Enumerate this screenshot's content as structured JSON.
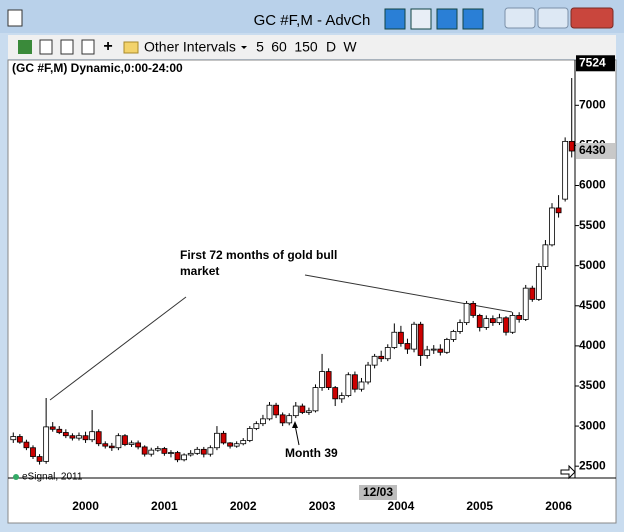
{
  "window": {
    "title": "GC #F,M - AdvCh",
    "toolbar": {
      "intervals_menu": "Other Intervals",
      "intervals": [
        "5",
        "60",
        "150",
        "D",
        "W"
      ]
    }
  },
  "chart_data": {
    "type": "candlestick",
    "title": "(GC #F,M) Dynamic,0:00-24:00",
    "categories": [
      null,
      null,
      null,
      null,
      null,
      null,
      null,
      null,
      null,
      null,
      null,
      "2000",
      null,
      null,
      null,
      null,
      null,
      null,
      null,
      null,
      null,
      null,
      null,
      "2001",
      null,
      null,
      null,
      null,
      null,
      null,
      null,
      null,
      null,
      null,
      null,
      "2002",
      null,
      null,
      null,
      null,
      null,
      null,
      null,
      null,
      null,
      null,
      null,
      "2003",
      null,
      null,
      null,
      null,
      null,
      null,
      null,
      null,
      null,
      null,
      null,
      "2004",
      null,
      null,
      null,
      null,
      null,
      null,
      null,
      null,
      null,
      null,
      null,
      "2005",
      null,
      null,
      null,
      null,
      null,
      null,
      null,
      null,
      null,
      null,
      null,
      "2006",
      null,
      null
    ],
    "open": [
      2830,
      2870,
      2800,
      2730,
      2620,
      2560,
      2990,
      2960,
      2920,
      2880,
      2850,
      2880,
      2830,
      2930,
      2780,
      2750,
      2730,
      2880,
      2770,
      2790,
      2740,
      2650,
      2700,
      2720,
      2660,
      2670,
      2580,
      2640,
      2660,
      2710,
      2650,
      2730,
      2910,
      2790,
      2750,
      2780,
      2820,
      2970,
      3030,
      3090,
      3260,
      3140,
      3040,
      3130,
      3250,
      3170,
      3190,
      3480,
      3680,
      3480,
      3340,
      3380,
      3640,
      3460,
      3550,
      3760,
      3870,
      3840,
      3980,
      4170,
      4030,
      3960,
      4270,
      3880,
      3950,
      3960,
      3920,
      4080,
      4180,
      4290,
      4530,
      4380,
      4230,
      4340,
      4290,
      4350,
      4170,
      4380,
      4330,
      4720,
      4580,
      4990,
      5260,
      5720,
      5830,
      6550
    ],
    "high": [
      2920,
      2900,
      2830,
      2760,
      2650,
      3350,
      3050,
      3000,
      2960,
      2910,
      2920,
      2930,
      3200,
      2960,
      2810,
      2790,
      2910,
      2900,
      2820,
      2820,
      2760,
      2730,
      2750,
      2740,
      2700,
      2690,
      2660,
      2700,
      2740,
      2740,
      2760,
      3000,
      2940,
      2800,
      2810,
      2850,
      3000,
      3060,
      3140,
      3300,
      3290,
      3170,
      3160,
      3300,
      3280,
      3230,
      3520,
      3900,
      3720,
      3500,
      3420,
      3670,
      3680,
      3600,
      3800,
      3900,
      3940,
      4020,
      4280,
      4250,
      4090,
      4300,
      4300,
      4000,
      4010,
      4020,
      4100,
      4200,
      4330,
      4560,
      4560,
      4400,
      4380,
      4380,
      4400,
      4370,
      4420,
      4420,
      4760,
      4750,
      5030,
      5320,
      5780,
      5880,
      6600,
      7340
    ],
    "low": [
      2790,
      2780,
      2700,
      2590,
      2520,
      2530,
      2930,
      2900,
      2850,
      2820,
      2820,
      2790,
      2800,
      2750,
      2720,
      2690,
      2700,
      2750,
      2740,
      2710,
      2620,
      2620,
      2680,
      2630,
      2610,
      2550,
      2560,
      2620,
      2640,
      2610,
      2620,
      2700,
      2770,
      2720,
      2730,
      2760,
      2800,
      2950,
      3000,
      3070,
      3100,
      3000,
      3010,
      3100,
      3150,
      3140,
      3170,
      3440,
      3450,
      3250,
      3290,
      3360,
      3420,
      3430,
      3520,
      3720,
      3800,
      3810,
      3960,
      3990,
      3900,
      3920,
      3750,
      3840,
      3900,
      3880,
      3900,
      4050,
      4150,
      4260,
      4350,
      4180,
      4200,
      4250,
      4260,
      4130,
      4150,
      4290,
      4310,
      4550,
      4560,
      4950,
      5240,
      5600,
      5800,
      6350
    ],
    "close": [
      2870,
      2800,
      2730,
      2620,
      2560,
      2990,
      2960,
      2920,
      2880,
      2850,
      2880,
      2830,
      2930,
      2780,
      2750,
      2730,
      2880,
      2770,
      2790,
      2740,
      2650,
      2700,
      2720,
      2660,
      2670,
      2580,
      2640,
      2660,
      2710,
      2650,
      2730,
      2910,
      2790,
      2750,
      2780,
      2820,
      2970,
      3030,
      3090,
      3260,
      3140,
      3040,
      3130,
      3250,
      3170,
      3190,
      3480,
      3680,
      3480,
      3340,
      3380,
      3640,
      3460,
      3550,
      3760,
      3870,
      3840,
      3980,
      4170,
      4030,
      3960,
      4270,
      3880,
      3950,
      3960,
      3920,
      4080,
      4180,
      4290,
      4530,
      4380,
      4230,
      4340,
      4290,
      4350,
      4170,
      4380,
      4330,
      4720,
      4580,
      4990,
      5260,
      5720,
      5660,
      6550,
      6430
    ],
    "up_color": "#ffffff",
    "down_color": "#cc0000",
    "ylim": [
      2390,
      7540
    ],
    "yticks": [
      2500,
      3000,
      3500,
      4000,
      4500,
      5000,
      5500,
      6000,
      6500,
      7000
    ],
    "high_label": 7524,
    "last_price": 6430,
    "annotations": [
      "First 72 months of gold bull market",
      "Month 39"
    ],
    "cursor_date": "12/03",
    "watermark": "eSignal, 2011"
  }
}
